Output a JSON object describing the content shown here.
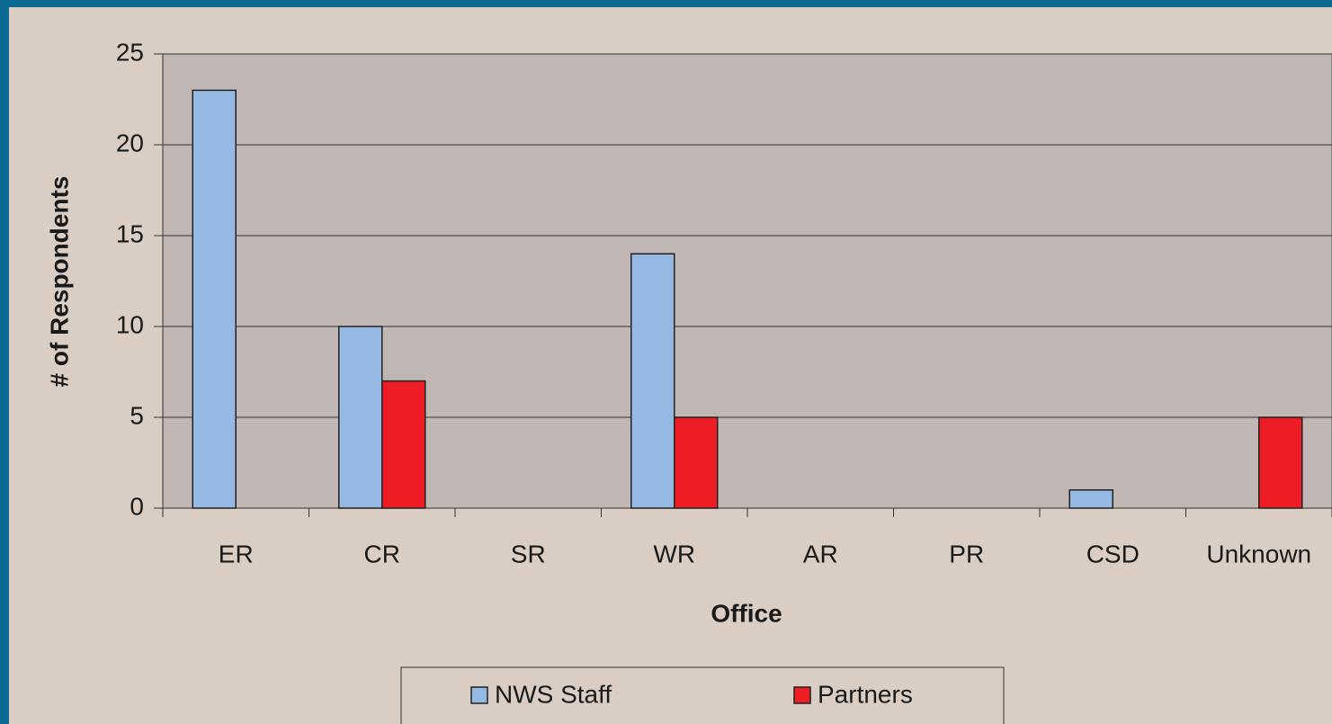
{
  "chart_data": {
    "type": "bar",
    "x_label": "Office",
    "y_label": "# of Respondents",
    "categories": [
      "ER",
      "CR",
      "SR",
      "WR",
      "AR",
      "PR",
      "CSD",
      "Unknown"
    ],
    "series": [
      {
        "name": "NWS Staff",
        "color": "#95b9e2",
        "values": [
          23,
          10,
          0,
          14,
          0,
          0,
          1,
          0
        ]
      },
      {
        "name": "Partners",
        "color": "#ee1c25",
        "values": [
          0,
          7,
          0,
          5,
          0,
          0,
          0,
          5
        ]
      }
    ],
    "ylim": [
      0,
      25
    ],
    "yticks": [
      0,
      5,
      10,
      15,
      20,
      25
    ],
    "grid": true
  }
}
